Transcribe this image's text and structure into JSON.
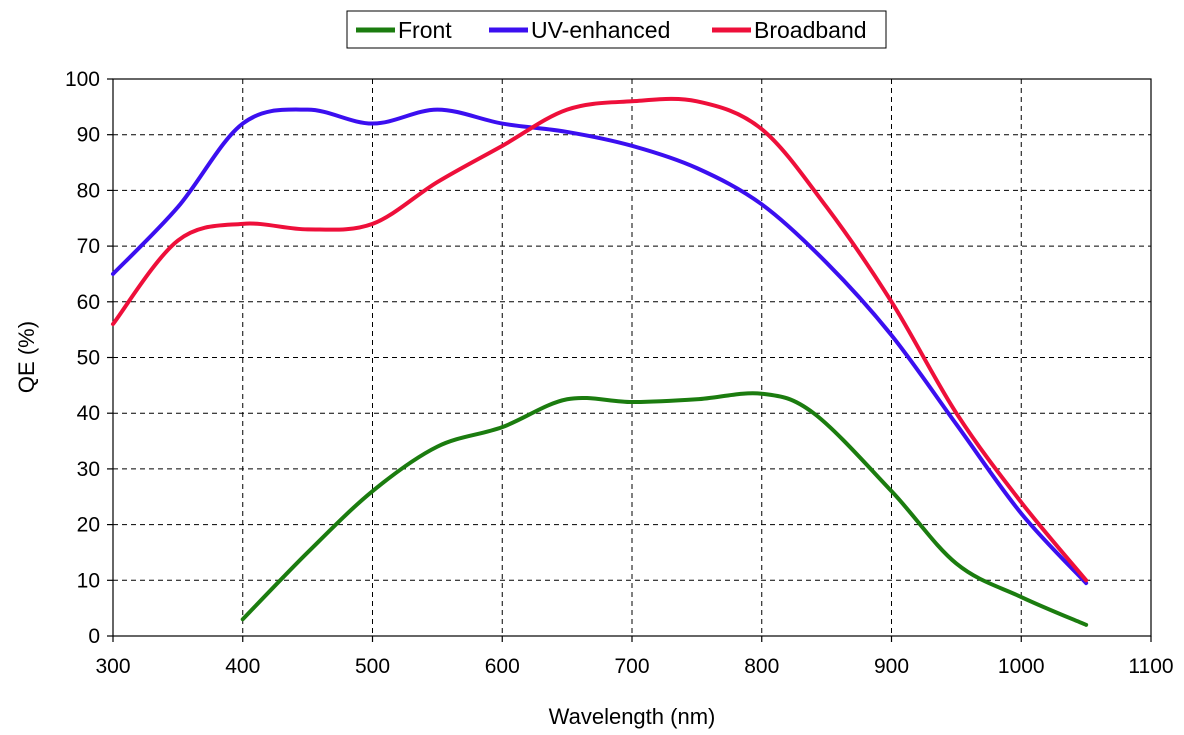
{
  "chart_data": {
    "type": "line",
    "title": "",
    "xlabel": "Wavelength (nm)",
    "ylabel": "QE  (%)",
    "xlim": [
      300,
      1100
    ],
    "ylim": [
      0,
      100
    ],
    "x_ticks": [
      300,
      400,
      500,
      600,
      700,
      800,
      900,
      1000,
      1100
    ],
    "y_ticks": [
      0,
      10,
      20,
      30,
      40,
      50,
      60,
      70,
      80,
      90,
      100
    ],
    "x_tick_labels": [
      "300",
      "400",
      "500",
      "600",
      "700",
      "800",
      "900",
      "1000",
      "1100"
    ],
    "y_tick_labels": [
      "0",
      "10",
      "20",
      "30",
      "40",
      "50",
      "60",
      "70",
      "80",
      "90",
      "100"
    ],
    "grid": true,
    "grid_style": "dashed",
    "legend_position": "top-center",
    "series": [
      {
        "name": "Front",
        "color": "#1b7c0f",
        "x": [
          400,
          450,
          500,
          550,
          600,
          650,
          700,
          750,
          800,
          840,
          900,
          950,
          1000,
          1050
        ],
        "y": [
          3,
          15,
          26,
          34,
          37.5,
          42.5,
          42,
          42.5,
          43.5,
          40,
          26,
          13,
          7,
          2
        ]
      },
      {
        "name": "UV-enhanced",
        "color": "#3b0ff0",
        "x": [
          300,
          350,
          400,
          450,
          500,
          550,
          600,
          650,
          700,
          750,
          800,
          850,
          900,
          950,
          1000,
          1050
        ],
        "y": [
          65,
          77,
          92,
          94.5,
          92,
          94.5,
          92,
          90.5,
          88,
          84,
          77.5,
          67,
          54,
          38,
          22,
          9.5
        ]
      },
      {
        "name": "Broadband",
        "color": "#ee0f3a",
        "x": [
          300,
          350,
          400,
          450,
          500,
          550,
          600,
          650,
          700,
          750,
          800,
          850,
          900,
          950,
          1000,
          1050
        ],
        "y": [
          56,
          71,
          74,
          73,
          74,
          81.5,
          88,
          94.5,
          96,
          96,
          91,
          77,
          60,
          40,
          24,
          10
        ]
      }
    ]
  }
}
